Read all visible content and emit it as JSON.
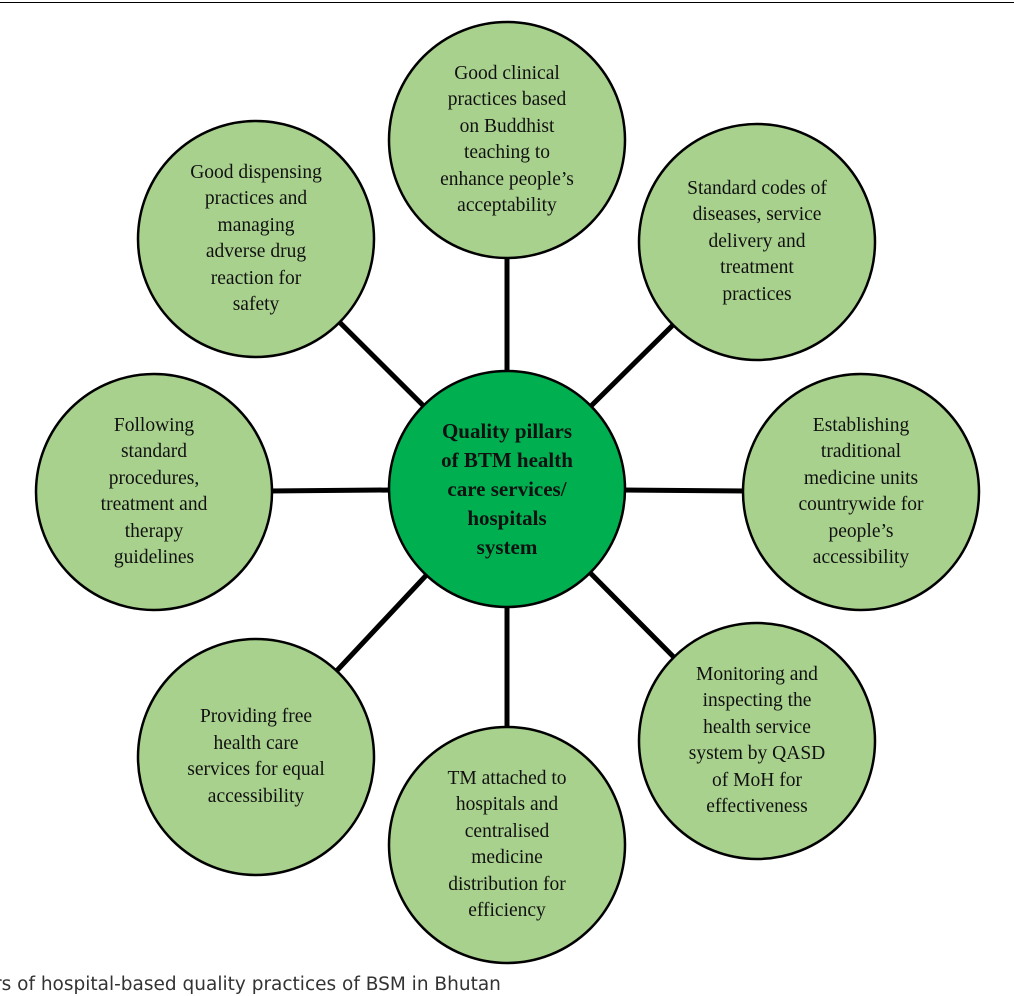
{
  "colors": {
    "outer_fill": "#a9d18e",
    "center_fill": "#00b050",
    "stroke": "#000000"
  },
  "center": {
    "text": "Quality pillars\nof BTM health\ncare services/\nhospitals\nsystem"
  },
  "pillars": [
    {
      "id": "top",
      "text": "Good clinical\npractices based\non Buddhist\nteaching to\nenhance people’s\nacceptability"
    },
    {
      "id": "top-right",
      "text": "Standard codes of\ndiseases, service\ndelivery and\ntreatment\npractices"
    },
    {
      "id": "right",
      "text": "Establishing\ntraditional\nmedicine units\ncountrywide for\npeople’s\naccessibility"
    },
    {
      "id": "bottom-right",
      "text": "Monitoring and\ninspecting the\nhealth service\nsystem by QASD\nof MoH for\neffectiveness"
    },
    {
      "id": "bottom",
      "text": "TM attached to\nhospitals and\ncentralised\nmedicine\ndistribution for\nefficiency"
    },
    {
      "id": "bottom-left",
      "text": "Providing free\nhealth care\nservices for equal\naccessibility"
    },
    {
      "id": "left",
      "text": "Following\nstandard\nprocedures,\ntreatment and\ntherapy\nguidelines"
    },
    {
      "id": "top-left",
      "text": "Good dispensing\npractices and\nmanaging\nadverse drug\nreaction for\nsafety"
    }
  ],
  "caption": "rs of hospital-based quality practices of BSM in Bhutan"
}
